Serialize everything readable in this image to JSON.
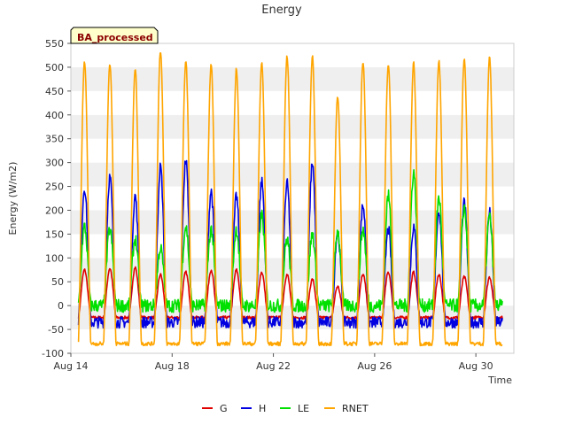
{
  "chart_data": {
    "type": "line",
    "title": "Energy",
    "xlabel": "Time",
    "ylabel": "Energy (W/m2)",
    "badge": "BA_processed",
    "ylim": [
      -100,
      550
    ],
    "yticks": [
      -100,
      -50,
      0,
      50,
      100,
      150,
      200,
      250,
      300,
      350,
      400,
      450,
      500,
      550
    ],
    "xlim_days": [
      14,
      31.5
    ],
    "xticks": [
      {
        "day": 14,
        "label": "Aug 14"
      },
      {
        "day": 18,
        "label": "Aug 18"
      },
      {
        "day": 22,
        "label": "Aug 22"
      },
      {
        "day": 26,
        "label": "Aug 26"
      },
      {
        "day": 30,
        "label": "Aug 30"
      }
    ],
    "grid": "horizontal bands",
    "legend_position": "bottom",
    "days": [
      14,
      15,
      16,
      17,
      18,
      19,
      20,
      21,
      22,
      23,
      24,
      25,
      26,
      27,
      28,
      29,
      30
    ],
    "series": [
      {
        "name": "G",
        "color": "#e00000",
        "noise": 3,
        "night": -25,
        "peaks": [
          75,
          78,
          80,
          65,
          70,
          75,
          75,
          70,
          65,
          55,
          40,
          65,
          70,
          70,
          65,
          60,
          60
        ]
      },
      {
        "name": "H",
        "color": "#0000e0",
        "noise": 12,
        "night": -35,
        "peaks": [
          248,
          270,
          230,
          290,
          305,
          240,
          230,
          260,
          255,
          300,
          155,
          210,
          160,
          165,
          200,
          215,
          195
        ]
      },
      {
        "name": "LE",
        "color": "#00e000",
        "noise": 14,
        "night": 0,
        "peaks": [
          165,
          160,
          140,
          120,
          165,
          160,
          160,
          190,
          140,
          150,
          155,
          160,
          230,
          280,
          225,
          205,
          185
        ]
      },
      {
        "name": "RNET",
        "color": "#ffa500",
        "noise": 4,
        "night": -80,
        "peaks": [
          512,
          508,
          498,
          535,
          513,
          505,
          497,
          508,
          523,
          523,
          435,
          512,
          505,
          510,
          512,
          518,
          520
        ]
      }
    ]
  }
}
